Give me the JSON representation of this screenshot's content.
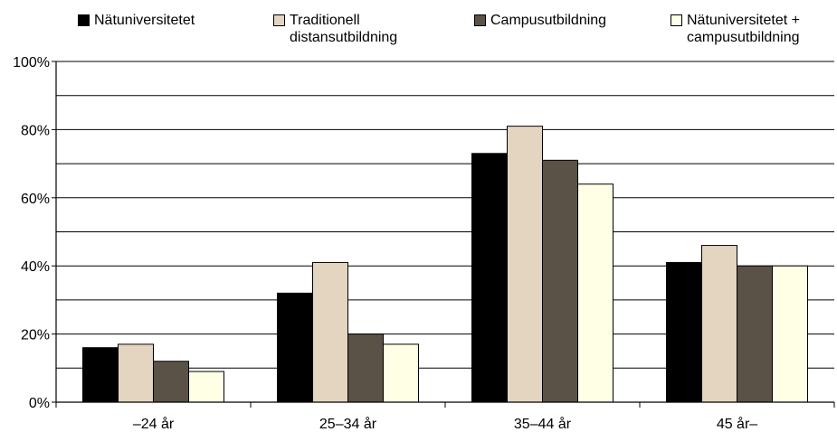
{
  "chart_data": {
    "type": "bar",
    "title": "",
    "xlabel": "",
    "ylabel": "",
    "categories": [
      "–24 år",
      "25–34 år",
      "35–44 år",
      "45 år–"
    ],
    "series": [
      {
        "name": "Nätuniversitetet",
        "color": "#000000",
        "values": [
          16,
          32,
          73,
          41
        ]
      },
      {
        "name": "Traditionell\ndistansutbildning",
        "color": "#e4d5c0",
        "values": [
          17,
          41,
          81,
          46
        ]
      },
      {
        "name": "Campusutbildning",
        "color": "#5b5247",
        "values": [
          12,
          20,
          71,
          40
        ]
      },
      {
        "name": "Nätuniversitetet +\ncampusutbildning",
        "color": "#ffffe6",
        "values": [
          9,
          17,
          64,
          40
        ]
      }
    ],
    "ylim": [
      0,
      100
    ],
    "yticks": [
      0,
      20,
      40,
      60,
      80,
      100
    ],
    "ytick_labels": [
      "0%",
      "20%",
      "40%",
      "60%",
      "80%",
      "100%"
    ],
    "grid": true,
    "legend_position": "top"
  }
}
